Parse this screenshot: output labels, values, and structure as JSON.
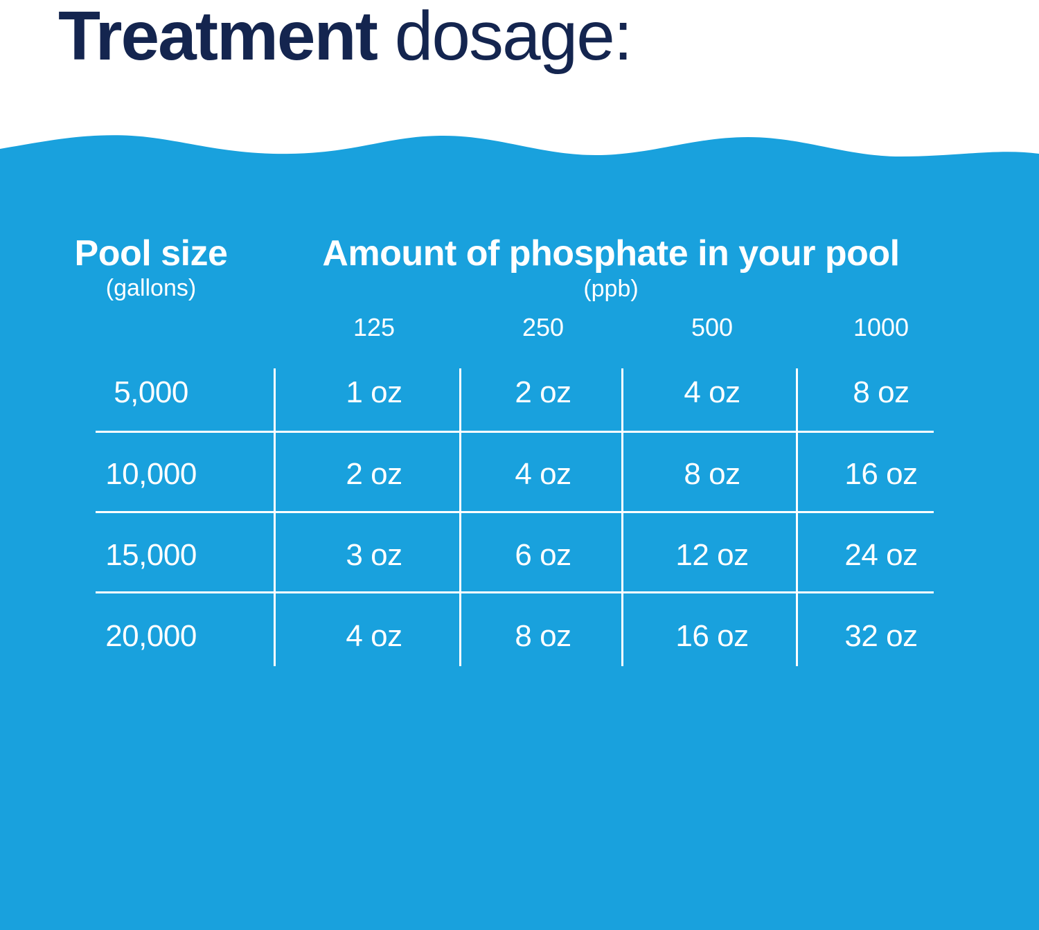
{
  "title": {
    "bold": "Treatment",
    "light": "dosage:"
  },
  "colors": {
    "title": "#14254f",
    "water": "#19a1dd",
    "text": "#ffffff",
    "background": "#ffffff"
  },
  "table": {
    "pool_size_header": "Pool size",
    "pool_size_unit": "(gallons)",
    "phosphate_header": "Amount of phosphate in your pool",
    "phosphate_unit": "(ppb)",
    "columns": [
      "125",
      "250",
      "500",
      "1000"
    ],
    "rows": [
      {
        "size": "5,000",
        "cells": [
          "1 oz",
          "2 oz",
          "4 oz",
          "8 oz"
        ]
      },
      {
        "size": "10,000",
        "cells": [
          "2 oz",
          "4 oz",
          "8 oz",
          "16 oz"
        ]
      },
      {
        "size": "15,000",
        "cells": [
          "3 oz",
          "6 oz",
          "12 oz",
          "24 oz"
        ]
      },
      {
        "size": "20,000",
        "cells": [
          "4 oz",
          "8 oz",
          "16 oz",
          "32 oz"
        ]
      }
    ]
  }
}
